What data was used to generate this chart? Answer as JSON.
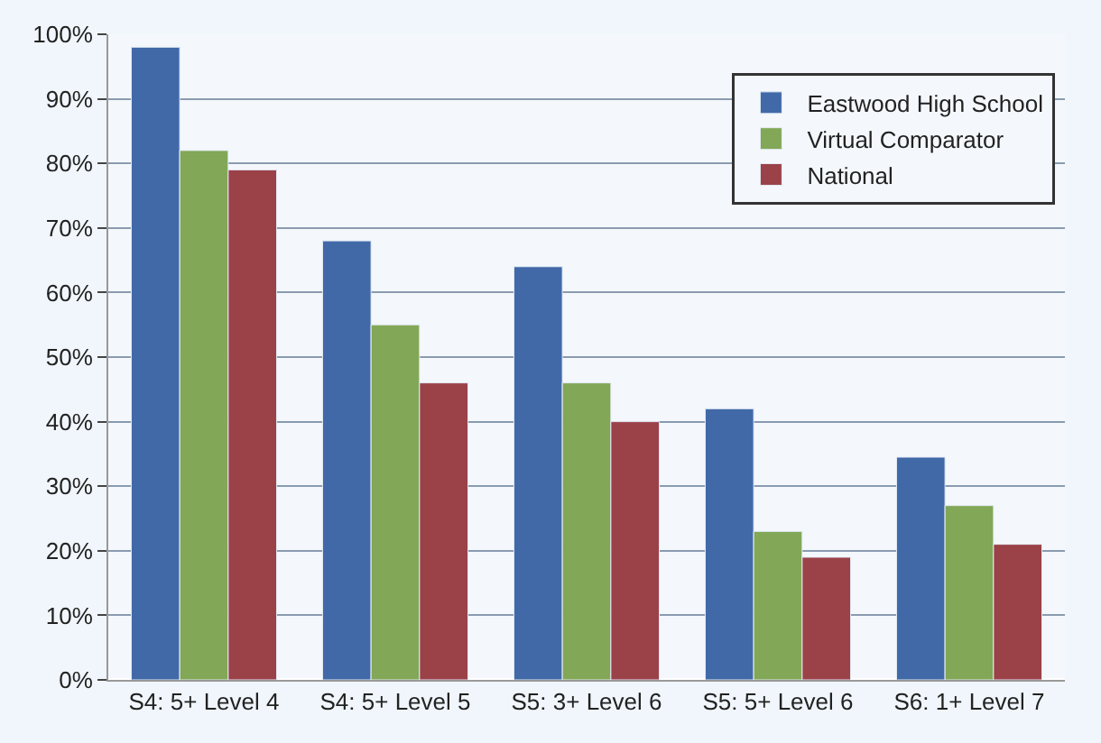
{
  "chart_data": {
    "type": "bar",
    "categories": [
      "S4: 5+ Level 4",
      "S4: 5+ Level 5",
      "S5: 3+ Level 6",
      "S5: 5+ Level 6",
      "S6: 1+ Level 7"
    ],
    "series": [
      {
        "name": "Eastwood High School",
        "color": "#4169a8",
        "values": [
          98,
          68,
          64,
          42,
          34.5
        ]
      },
      {
        "name": "Virtual Comparator",
        "color": "#82a756",
        "values": [
          82,
          55,
          46,
          23,
          27
        ]
      },
      {
        "name": "National",
        "color": "#9b4148",
        "values": [
          79,
          46,
          40,
          19,
          21
        ]
      }
    ],
    "ylim": [
      0,
      100
    ],
    "yticks": [
      {
        "value": 0,
        "label": "0%"
      },
      {
        "value": 10,
        "label": "10%"
      },
      {
        "value": 20,
        "label": "20%"
      },
      {
        "value": 30,
        "label": "30%"
      },
      {
        "value": 40,
        "label": "40%"
      },
      {
        "value": 50,
        "label": "50%"
      },
      {
        "value": 60,
        "label": "60%"
      },
      {
        "value": 70,
        "label": "70%"
      },
      {
        "value": 80,
        "label": "80%"
      },
      {
        "value": 90,
        "label": "90%"
      },
      {
        "value": 100,
        "label": "100%"
      }
    ],
    "grid": "y",
    "legend": "top right"
  }
}
